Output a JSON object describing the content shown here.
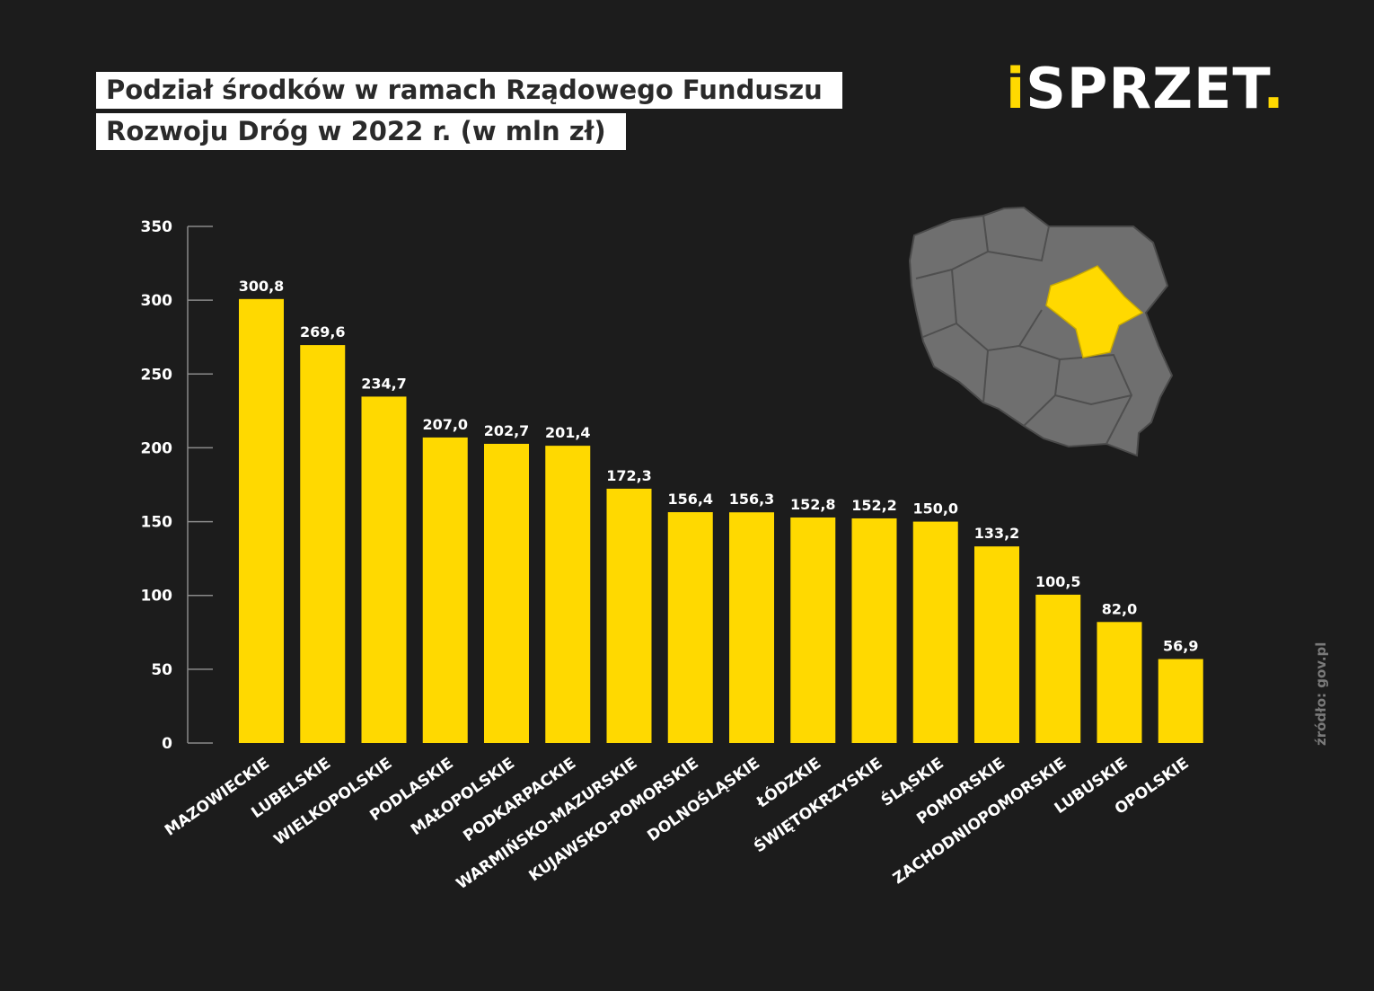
{
  "header": {
    "title_line_1": "Podział środków w ramach Rządowego Funduszu",
    "title_line_2": "Rozwoju Dróg w 2022 r. (w mln zł)"
  },
  "logo": {
    "i": "i",
    "text": "SPRZET",
    "dot": "."
  },
  "source": "źródło: gov.pl",
  "colors": {
    "background": "#1c1c1c",
    "bar": "#ffd900",
    "map_gray": "#6f6f6f",
    "map_highlight": "#ffd900"
  },
  "chart_data": {
    "type": "bar",
    "title": "Podział środków w ramach Rządowego Funduszu Rozwoju Dróg w 2022 r. (w mln zł)",
    "xlabel": "",
    "ylabel": "",
    "ylim": [
      0,
      350
    ],
    "yticks": [
      0,
      50,
      100,
      150,
      200,
      250,
      300,
      350
    ],
    "grid": false,
    "categories": [
      "MAZOWIECKIE",
      "LUBELSKIE",
      "WIELKOPOLSKIE",
      "PODLASKIE",
      "MAŁOPOLSKIE",
      "PODKARPACKIE",
      "WARMIŃSKO-MAZURSKIE",
      "KUJAWSKO-POMORSKIE",
      "DOLNOŚLĄSKIE",
      "ŁÓDZKIE",
      "ŚWIĘTOKRZYSKIE",
      "ŚLĄSKIE",
      "POMORSKIE",
      "ZACHODNIOPOMORSKIE",
      "LUBUSKIE",
      "OPOLSKIE"
    ],
    "values": [
      300.8,
      269.6,
      234.7,
      207.0,
      202.7,
      201.4,
      172.3,
      156.4,
      156.3,
      152.8,
      152.2,
      150.0,
      133.2,
      100.5,
      82.0,
      56.9
    ],
    "value_labels": [
      "300,8",
      "269,6",
      "234,7",
      "207,0",
      "202,7",
      "201,4",
      "172,3",
      "156,4",
      "156,3",
      "152,8",
      "152,2",
      "150,0",
      "133,2",
      "100,5",
      "82,0",
      "56,9"
    ]
  }
}
